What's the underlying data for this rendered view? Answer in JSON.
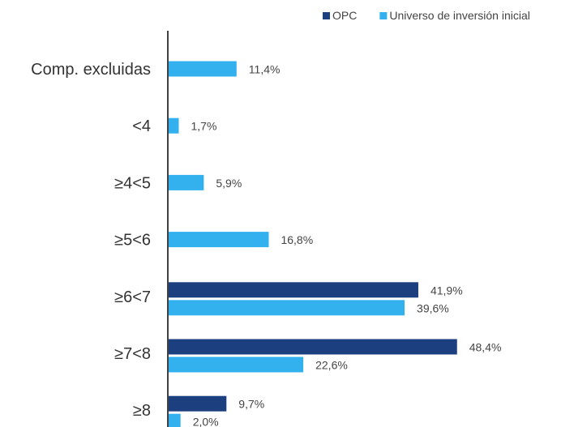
{
  "chart_data": {
    "type": "bar",
    "orientation": "horizontal",
    "categories": [
      "Comp. excluidas",
      "<4",
      "≥4<5",
      "≥5<6",
      "≥6<7",
      "≥7<8",
      "≥8"
    ],
    "series": [
      {
        "name": "OPC",
        "color": "#1c3f7f",
        "values": [
          null,
          null,
          null,
          null,
          41.9,
          48.4,
          9.7
        ],
        "labels": [
          "",
          "",
          "",
          "",
          "41,9%",
          "48,4%",
          "9,7%"
        ]
      },
      {
        "name": "Universo de inversión inicial",
        "color": "#33b0ee",
        "values": [
          11.4,
          1.7,
          5.9,
          16.8,
          39.6,
          22.6,
          2.0
        ],
        "labels": [
          "11,4%",
          "1,7%",
          "5,9%",
          "16,8%",
          "39,6%",
          "22,6%",
          "2,0%"
        ]
      }
    ],
    "xlim": [
      0,
      50
    ],
    "grid": false,
    "legend_position": "top-right",
    "axis_color": "#000000"
  }
}
